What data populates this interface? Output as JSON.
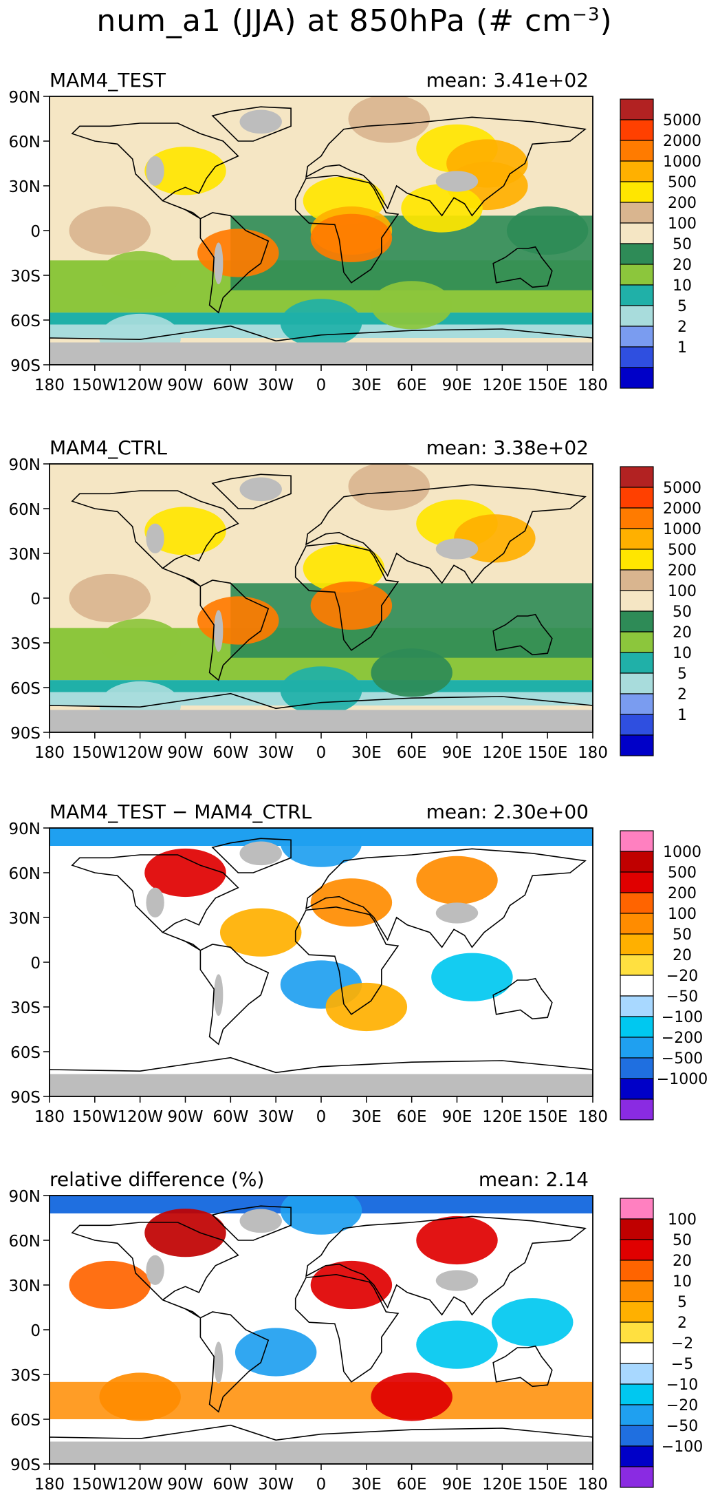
{
  "title": {
    "prefix": "num_a1 (JJA) at 850hPa (# cm",
    "exponent": "−3",
    "suffix": ")"
  },
  "colors": {
    "land_mask": "#bdbdbd",
    "coast": "#000000",
    "frame": "#000000"
  },
  "chart_data": [
    {
      "type": "heatmap",
      "panel": "MAM4_TEST",
      "title": "MAM4_TEST",
      "stat_label": "mean: 3.41e+02",
      "mean": 341,
      "xlabel": "",
      "ylabel": "",
      "xlim": [
        -180,
        180
      ],
      "ylim": [
        -90,
        90
      ],
      "x_ticks": [
        "180",
        "150W",
        "120W",
        "90W",
        "60W",
        "30W",
        "0",
        "30E",
        "60E",
        "90E",
        "120E",
        "150E",
        "180"
      ],
      "y_ticks": [
        "90N",
        "60N",
        "30N",
        "0",
        "30S",
        "60S",
        "90S"
      ],
      "colorbar": {
        "labels": [
          "5000",
          "2000",
          "1000",
          "500",
          "200",
          "100",
          "50",
          "20",
          "10",
          "5",
          "2",
          "1"
        ],
        "colors": [
          "#0000c8",
          "#2f4fe0",
          "#7a9cf0",
          "#a8dcdc",
          "#20b0a8",
          "#8cc63c",
          "#2e8b57",
          "#f5e6c4",
          "#d9b58f",
          "#ffe600",
          "#ffb000",
          "#ff7b00",
          "#ff4000",
          "#b22222"
        ]
      },
      "regions": [
        {
          "lat": 75,
          "lon": 45,
          "level": 8
        },
        {
          "lat": 55,
          "lon": 90,
          "level": 9
        },
        {
          "lat": 45,
          "lon": 110,
          "level": 10
        },
        {
          "lat": 30,
          "lon": 110,
          "level": 10
        },
        {
          "lat": 20,
          "lon": 15,
          "level": 9
        },
        {
          "lat": 0,
          "lon": 20,
          "level": 10
        },
        {
          "lat": -5,
          "lon": 20,
          "level": 11
        },
        {
          "lat": -15,
          "lon": -55,
          "level": 11
        },
        {
          "lat": 40,
          "lon": -90,
          "level": 9
        },
        {
          "lat": 0,
          "lon": -140,
          "level": 8
        },
        {
          "lat": 0,
          "lon": 150,
          "level": 6
        },
        {
          "lat": -30,
          "lon": -120,
          "level": 5
        },
        {
          "lat": -50,
          "lon": 60,
          "level": 5
        },
        {
          "lat": -62,
          "lon": 0,
          "level": 4
        },
        {
          "lat": -72,
          "lon": -120,
          "level": 3
        },
        {
          "lat": 15,
          "lon": 80,
          "level": 9
        }
      ]
    },
    {
      "type": "heatmap",
      "panel": "MAM4_CTRL",
      "title": "MAM4_CTRL",
      "stat_label": "mean: 3.38e+02",
      "mean": 338,
      "xlabel": "",
      "ylabel": "",
      "xlim": [
        -180,
        180
      ],
      "ylim": [
        -90,
        90
      ],
      "x_ticks": [
        "180",
        "150W",
        "120W",
        "90W",
        "60W",
        "30W",
        "0",
        "30E",
        "60E",
        "90E",
        "120E",
        "150E",
        "180"
      ],
      "y_ticks": [
        "90N",
        "60N",
        "30N",
        "0",
        "30S",
        "60S",
        "90S"
      ],
      "colorbar": {
        "labels": [
          "5000",
          "2000",
          "1000",
          "500",
          "200",
          "100",
          "50",
          "20",
          "10",
          "5",
          "2",
          "1"
        ],
        "colors": [
          "#0000c8",
          "#2f4fe0",
          "#7a9cf0",
          "#a8dcdc",
          "#20b0a8",
          "#8cc63c",
          "#2e8b57",
          "#f5e6c4",
          "#d9b58f",
          "#ffe600",
          "#ffb000",
          "#ff7b00",
          "#ff4000",
          "#b22222"
        ]
      },
      "regions": [
        {
          "lat": 75,
          "lon": 45,
          "level": 8
        },
        {
          "lat": 50,
          "lon": 90,
          "level": 9
        },
        {
          "lat": 40,
          "lon": 115,
          "level": 10
        },
        {
          "lat": 20,
          "lon": 15,
          "level": 9
        },
        {
          "lat": -5,
          "lon": 20,
          "level": 11
        },
        {
          "lat": -15,
          "lon": -55,
          "level": 11
        },
        {
          "lat": 45,
          "lon": -90,
          "level": 9
        },
        {
          "lat": 0,
          "lon": -140,
          "level": 8
        },
        {
          "lat": -30,
          "lon": -120,
          "level": 5
        },
        {
          "lat": -50,
          "lon": 60,
          "level": 6
        },
        {
          "lat": -62,
          "lon": 0,
          "level": 4
        },
        {
          "lat": -72,
          "lon": -120,
          "level": 3
        }
      ]
    },
    {
      "type": "heatmap",
      "panel": "difference",
      "title": "MAM4_TEST − MAM4_CTRL",
      "stat_label": "mean: 2.30e+00",
      "mean": 2.3,
      "xlabel": "",
      "ylabel": "",
      "xlim": [
        -180,
        180
      ],
      "ylim": [
        -90,
        90
      ],
      "x_ticks": [
        "180",
        "150W",
        "120W",
        "90W",
        "60W",
        "30W",
        "0",
        "30E",
        "60E",
        "90E",
        "120E",
        "150E",
        "180"
      ],
      "y_ticks": [
        "90N",
        "60N",
        "30N",
        "0",
        "30S",
        "60S",
        "90S"
      ],
      "colorbar": {
        "labels": [
          "1000",
          "500",
          "200",
          "100",
          "50",
          "20",
          "−20",
          "−50",
          "−100",
          "−200",
          "−500",
          "−1000"
        ],
        "colors": [
          "#8a2be2",
          "#0000c8",
          "#1f6fe0",
          "#1fa0f0",
          "#00c8f0",
          "#a8d8ff",
          "#ffffff",
          "#ffe040",
          "#ffb000",
          "#ff8c00",
          "#ff6400",
          "#e00000",
          "#c00000",
          "#ff80c0"
        ]
      },
      "regions": [
        {
          "lat": 60,
          "lon": -90,
          "level": 11
        },
        {
          "lat": 40,
          "lon": 20,
          "level": 9
        },
        {
          "lat": 55,
          "lon": 90,
          "level": 9
        },
        {
          "lat": 20,
          "lon": -40,
          "level": 8
        },
        {
          "lat": -15,
          "lon": 0,
          "level": 3
        },
        {
          "lat": -10,
          "lon": 100,
          "level": 4
        },
        {
          "lat": 80,
          "lon": 0,
          "level": 3
        },
        {
          "lat": -30,
          "lon": 30,
          "level": 8
        },
        {
          "lat": 0,
          "lon": -150,
          "level": 6
        }
      ]
    },
    {
      "type": "heatmap",
      "panel": "relative",
      "title": "relative difference (%)",
      "stat_label": "mean:  2.14",
      "mean": 2.14,
      "xlabel": "",
      "ylabel": "",
      "xlim": [
        -180,
        180
      ],
      "ylim": [
        -90,
        90
      ],
      "x_ticks": [
        "180",
        "150W",
        "120W",
        "90W",
        "60W",
        "30W",
        "0",
        "30E",
        "60E",
        "90E",
        "120E",
        "150E",
        "180"
      ],
      "y_ticks": [
        "90N",
        "60N",
        "30N",
        "0",
        "30S",
        "60S",
        "90S"
      ],
      "colorbar": {
        "labels": [
          "100",
          "50",
          "20",
          "10",
          "5",
          "2",
          "−2",
          "−5",
          "−10",
          "−20",
          "−50",
          "−100"
        ],
        "colors": [
          "#8a2be2",
          "#0000c8",
          "#1f6fe0",
          "#1fa0f0",
          "#00c8f0",
          "#a8d8ff",
          "#ffffff",
          "#ffe040",
          "#ffb000",
          "#ff8c00",
          "#ff6400",
          "#e00000",
          "#c00000",
          "#ff80c0"
        ]
      },
      "regions": [
        {
          "lat": 65,
          "lon": -90,
          "level": 12
        },
        {
          "lat": 60,
          "lon": 90,
          "level": 11
        },
        {
          "lat": 30,
          "lon": -140,
          "level": 10
        },
        {
          "lat": 30,
          "lon": 20,
          "level": 11
        },
        {
          "lat": -15,
          "lon": -30,
          "level": 3
        },
        {
          "lat": -10,
          "lon": 90,
          "level": 4
        },
        {
          "lat": -45,
          "lon": 60,
          "level": 11
        },
        {
          "lat": -45,
          "lon": -120,
          "level": 9
        },
        {
          "lat": 80,
          "lon": 0,
          "level": 3
        },
        {
          "lat": 5,
          "lon": 140,
          "level": 4
        }
      ]
    }
  ]
}
